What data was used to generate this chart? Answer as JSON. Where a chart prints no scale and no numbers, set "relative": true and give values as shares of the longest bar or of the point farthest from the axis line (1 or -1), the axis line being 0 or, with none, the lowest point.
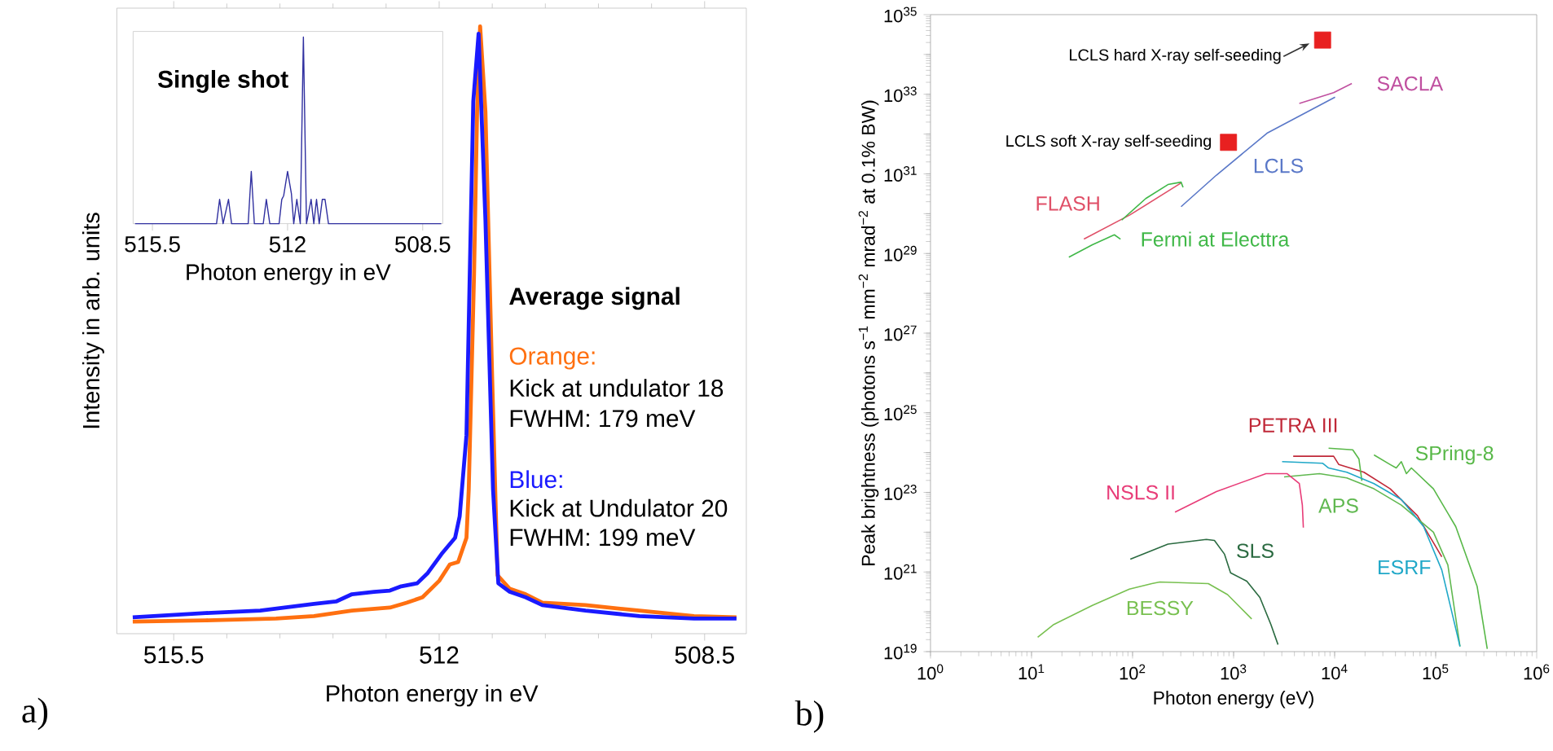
{
  "chart_data": [
    {
      "type": "line",
      "relative": true,
      "tick_labels": "x",
      "xlabel": "Photon energy in eV",
      "ylabel": "Intensity in arb. units",
      "xlim": [
        516.25,
        507.95
      ],
      "xticks": [
        515.5,
        512,
        508.5
      ],
      "annotations": [
        "Average signal",
        "Kick at undulator 18",
        "FWHM: 179 meV",
        "Kick at Undulator 20",
        "FWHM: 199 meV",
        "a)"
      ],
      "series": [
        {
          "name": "Orange:",
          "color": "#ff7010",
          "x": [
            516.04,
            515.08,
            514.15,
            513.65,
            513.15,
            512.65,
            512.43,
            512.22,
            512.0,
            511.86,
            511.75,
            511.64,
            511.61,
            511.54,
            511.5,
            511.46,
            511.39,
            511.3,
            511.23,
            511.07,
            510.86,
            510.64,
            510.07,
            509.36,
            508.64,
            508.08
          ],
          "values": [
            0.02,
            0.022,
            0.025,
            0.029,
            0.038,
            0.043,
            0.051,
            0.06,
            0.087,
            0.114,
            0.118,
            0.158,
            0.238,
            0.593,
            0.859,
            1,
            0.859,
            0.415,
            0.096,
            0.074,
            0.065,
            0.051,
            0.047,
            0.038,
            0.029,
            0.027
          ]
        },
        {
          "name": "Blue:",
          "color": "#1a1aff",
          "x": [
            516.04,
            515.08,
            514.36,
            513.65,
            513.36,
            513.15,
            512.86,
            512.65,
            512.5,
            512.29,
            512.15,
            511.97,
            511.79,
            511.73,
            511.64,
            511.55,
            511.48,
            511.39,
            511.29,
            511.22,
            511.07,
            510.86,
            510.64,
            510.07,
            509.36,
            508.64,
            508.08
          ],
          "values": [
            0.027,
            0.034,
            0.038,
            0.049,
            0.053,
            0.065,
            0.069,
            0.071,
            0.078,
            0.083,
            0.1,
            0.131,
            0.158,
            0.193,
            0.327,
            0.877,
            0.988,
            0.681,
            0.238,
            0.083,
            0.069,
            0.06,
            0.047,
            0.038,
            0.029,
            0.025,
            0.025
          ]
        }
      ]
    },
    {
      "type": "line",
      "relative": true,
      "tick_labels": "x",
      "title": "Single shot",
      "xlabel": "Photon energy in eV",
      "xlim": [
        516,
        507.98
      ],
      "xticks": [
        515.5,
        512,
        508.5
      ],
      "series": [
        {
          "color": "#3030a0",
          "x": [
            515.95,
            513.84,
            513.76,
            513.67,
            513.53,
            513.45,
            513.02,
            512.94,
            512.86,
            512.63,
            512.55,
            512.46,
            512.22,
            512.15,
            512.1,
            512.0,
            511.9,
            511.84,
            511.76,
            511.67,
            511.59,
            511.51,
            511.39,
            511.32,
            511.25,
            511.18,
            511.1,
            511.03,
            510.94,
            508.02
          ],
          "values": [
            0,
            0,
            0.13,
            0,
            0.13,
            0,
            0,
            0.28,
            0,
            0,
            0.13,
            0,
            0,
            0.13,
            0.15,
            0.28,
            0.16,
            0,
            0.13,
            0,
            1,
            0,
            0.13,
            0,
            0.13,
            0,
            0.13,
            0.13,
            0,
            0
          ]
        }
      ]
    },
    {
      "type": "line",
      "log": "xy",
      "xlabel": "Photon energy (eV)",
      "ylabel": "Peak brightness (photons s$^{−1}$ mm$^{−2}$ mrad$^{−2}$ at 0.1% BW)",
      "xlim": [
        1,
        1000000
      ],
      "ylim": [
        1e+19,
        1e+35
      ],
      "xticks": [
        {
          "value": 1,
          "label": "10$^{0}$"
        },
        {
          "value": 10,
          "label": "10$^{1}$"
        },
        {
          "value": 100,
          "label": "10$^{2}$"
        },
        {
          "value": 1000,
          "label": "10$^{3}$"
        },
        {
          "value": 10000,
          "label": "10$^{4}$"
        },
        {
          "value": 100000,
          "label": "10$^{5}$"
        },
        {
          "value": 1000000,
          "label": "10$^{6}$"
        }
      ],
      "yticks": [
        {
          "value": 1e+19,
          "label": "10$^{19}$"
        },
        {
          "value": 1e+20,
          "label": null
        },
        {
          "value": 1e+21,
          "label": "10$^{21}$"
        },
        {
          "value": 1e+22,
          "label": null
        },
        {
          "value": 1e+23,
          "label": "10$^{23}$"
        },
        {
          "value": 1e+24,
          "label": null
        },
        {
          "value": 1e+25,
          "label": "10$^{25}$"
        },
        {
          "value": 1e+26,
          "label": null
        },
        {
          "value": 1e+27,
          "label": "10$^{27}$"
        },
        {
          "value": 1e+28,
          "label": null
        },
        {
          "value": 1e+29,
          "label": "10$^{29}$"
        },
        {
          "value": 1e+30,
          "label": null
        },
        {
          "value": 1e+31,
          "label": "10$^{31}$"
        },
        {
          "value": 1e+32,
          "label": null
        },
        {
          "value": 1e+33,
          "label": "10$^{33}$"
        },
        {
          "value": 1e+34,
          "label": null
        },
        {
          "value": 1e+35,
          "label": "10$^{35}$"
        }
      ],
      "annotations": [
        {
          "text": "LCLS hard X-ray self-seeding",
          "x": 7600,
          "y": 2.3e+34
        },
        {
          "text": "LCLS soft X-ray self-seeding",
          "x": 890,
          "y": 6.2e+31
        },
        "b)"
      ],
      "series": [
        {
          "name": "LCLS",
          "color": "#5a78c8",
          "x": [
            302,
            676,
            2140,
            10100
          ],
          "values": [
            1.5e+30,
            9.3e+30,
            1.05e+32,
            8.5e+32
          ]
        },
        {
          "name": "SACLA",
          "color": "#c050a0",
          "x": [
            4470,
            9770,
            14800
          ],
          "values": [
            5.9e+32,
            1.1e+33,
            1.86e+33
          ]
        },
        {
          "name": "FLASH",
          "color": "#e05068",
          "x": [
            33,
            94,
            302
          ],
          "values": [
            2.3e+29,
            9.3e+29,
            5.9e+30
          ]
        },
        {
          "name": "Fermi at Electtra",
          "color": "#40b848",
          "x": [
            23.4,
            40,
            66,
            76,
            77,
            78,
            135,
            224,
            302,
            316
          ],
          "values": [
            8.1e+28,
            1.66e+29,
            2.95e+29,
            2.3e+29,
            null,
            6.9e+29,
            2.4e+30,
            5.4e+30,
            6.2e+30,
            4.6e+30
          ]
        },
        {
          "name": "PETRA III",
          "color": "#c02838",
          "x": [
            3890,
            9770,
            11000,
            19500,
            35500,
            66000,
            115000
          ],
          "values": [
            8.1e+23,
            8.1e+23,
            5e+23,
            3.2e+23,
            1.23e+23,
            2.6e+22,
            2.4e+21
          ]
        },
        {
          "name": "SPring-8",
          "color": "#58b848",
          "x": [
            8710,
            15100,
            17400,
            18600,
            21000,
            24500,
            35500,
            40700,
            45700,
            51300,
            57500,
            95000,
            158000,
            257000,
            324000
          ],
          "values": [
            1.29e+24,
            1.17e+24,
            6.9e+23,
            1.95e+23,
            null,
            8.7e+23,
            5e+23,
            4.1e+23,
            5.9e+23,
            2.95e+23,
            4.1e+23,
            1.23e+23,
            1.38e+22,
            4.4e+20,
            1.17e+19
          ]
        },
        {
          "name": "APS",
          "color": "#60b850",
          "x": [
            3160,
            7080,
            13200,
            24500,
            45700,
            95000,
            132000,
            174000
          ],
          "values": [
            2.45e+23,
            2.95e+23,
            2.3e+23,
            1.23e+23,
            4.8e+22,
            1e+22,
            1.5e+21,
            1.35e+19
          ]
        },
        {
          "name": "ESRF",
          "color": "#20a8c8",
          "x": [
            3020,
            7590,
            8710,
            13200,
            24500,
            45700,
            76000,
            115000,
            174000
          ],
          "values": [
            5.9e+23,
            5.4e+23,
            4.1e+23,
            3.2e+23,
            1.66e+23,
            6.6e+22,
            1.38e+22,
            1.12e+21,
            1.35e+19
          ]
        },
        {
          "name": "NSLS II",
          "color": "#e83c78",
          "x": [
            263,
            676,
            2090,
            3390,
            4470,
            4790,
            4900
          ],
          "values": [
            3.2e+22,
            1.05e+23,
            2.95e+23,
            2.95e+23,
            1.66e+23,
            4.8e+22,
            1.3e+22
          ]
        },
        {
          "name": "SLS",
          "color": "#2a6a40",
          "x": [
            95,
            224,
            537,
            646,
            813,
            933,
            1350,
            1820,
            2340,
            2750
          ],
          "values": [
            2.1e+21,
            5e+21,
            6.6e+21,
            6.2e+21,
            2.8e+21,
            9.5e+20,
            5.9e+20,
            2.3e+20,
            4.8e+19,
            1.5e+19
          ]
        },
        {
          "name": "BESSY",
          "color": "#78c050",
          "x": [
            11.5,
            16.6,
            40,
            93,
            155,
            186,
            562,
            871,
            1510
          ],
          "values": [
            2.3e+19,
            4.8e+19,
            1.45e+20,
            3.7e+20,
            5.1e+20,
            5.6e+20,
            5.1e+20,
            2.7e+20,
            6.6e+19
          ]
        },
        {
          "type": "scatter",
          "marker": "square",
          "color": "#e82020",
          "x": [
            890,
            7600
          ],
          "values": [
            6.2e+31,
            2.3e+34
          ]
        }
      ]
    }
  ]
}
